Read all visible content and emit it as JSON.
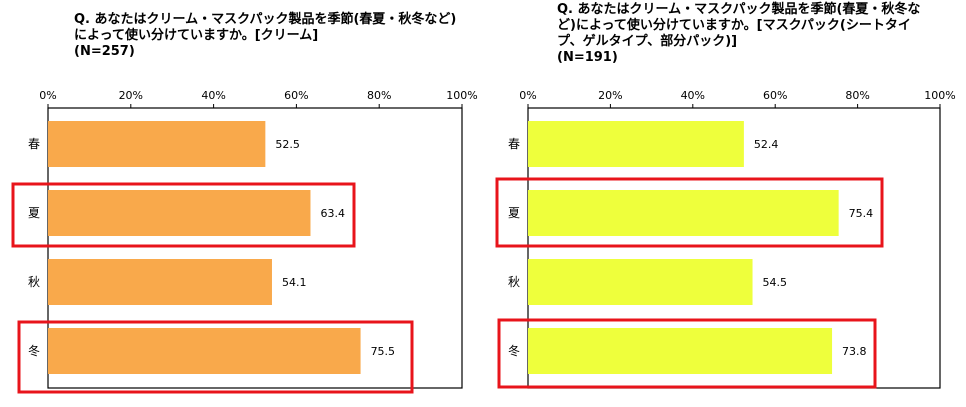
{
  "chart_data": [
    {
      "type": "bar",
      "orientation": "horizontal",
      "title": "Q. あなたはクリーム・マスクパック製品を季節(春夏・秋冬など)\nによって使い分けていますか。[クリーム]\n(N=257)",
      "categories": [
        "春",
        "夏",
        "秋",
        "冬"
      ],
      "values": [
        52.5,
        63.4,
        54.1,
        75.5
      ],
      "value_labels": [
        "52.5",
        "63.4",
        "54.1",
        "75.5"
      ],
      "xlim": [
        0,
        100
      ],
      "ticks": [
        "0%",
        "20%",
        "40%",
        "60%",
        "80%",
        "100%"
      ],
      "bar_color": "#F9A94B",
      "highlighted": [
        "夏",
        "冬"
      ],
      "highlight_color": "#E8141B",
      "grid": false,
      "xlabel": "",
      "ylabel": ""
    },
    {
      "type": "bar",
      "orientation": "horizontal",
      "title": "Q. あなたはクリーム・マスクパック製品を季節(春夏・秋冬な\nど)によって使い分けていますか。[マスクパック(シートタイ\nプ、ゲルタイプ、部分パック)]\n(N=191)",
      "categories": [
        "春",
        "夏",
        "秋",
        "冬"
      ],
      "values": [
        52.4,
        75.4,
        54.5,
        73.8
      ],
      "value_labels": [
        "52.4",
        "75.4",
        "54.5",
        "73.8"
      ],
      "xlim": [
        0,
        100
      ],
      "ticks": [
        "0%",
        "20%",
        "40%",
        "60%",
        "80%",
        "100%"
      ],
      "bar_color": "#EEFF3C",
      "highlighted": [
        "夏",
        "冬"
      ],
      "highlight_color": "#E8141B",
      "grid": false,
      "xlabel": "",
      "ylabel": ""
    }
  ]
}
